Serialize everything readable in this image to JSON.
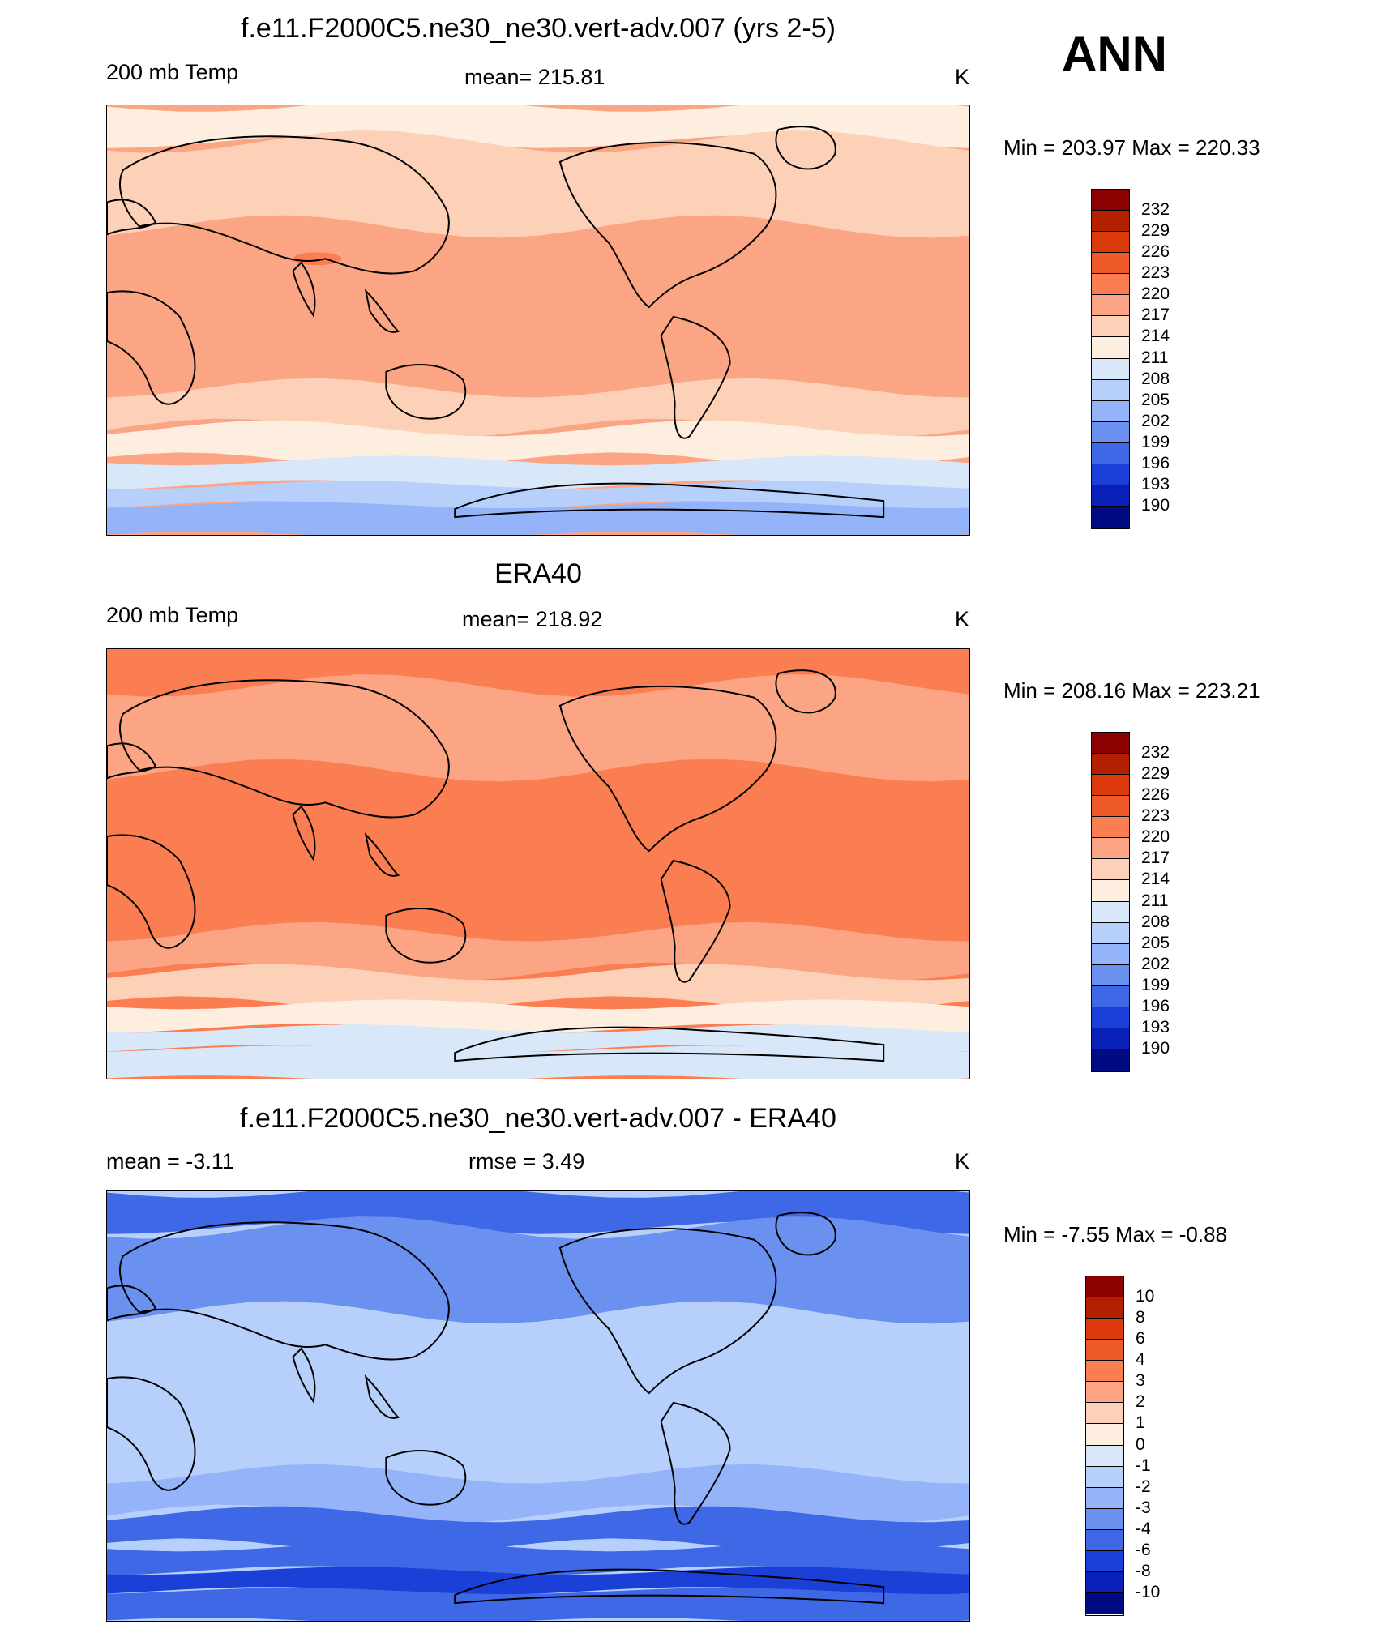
{
  "season": "ANN",
  "panels": [
    {
      "title": "f.e11.F2000C5.ne30_ne30.vert-adv.007 (yrs 2-5)",
      "left_label": "200 mb Temp",
      "center_label": "mean= 215.81",
      "units": "K",
      "minmax": "Min = 203.97 Max = 220.33",
      "colorbar_labels": [
        "232",
        "229",
        "226",
        "223",
        "220",
        "217",
        "214",
        "211",
        "208",
        "205",
        "202",
        "199",
        "196",
        "193",
        "190"
      ],
      "colorbar_colors": [
        "#8b0000",
        "#b22000",
        "#dd3a0c",
        "#f05a2a",
        "#fb7d52",
        "#fca585",
        "#fdd0b8",
        "#fdeedf",
        "#d8e8f8",
        "#b7d0fb",
        "#94b3f8",
        "#6a90f0",
        "#3e68e6",
        "#1a40d8",
        "#0820b8",
        "#000a82"
      ],
      "fields": {
        "zone_north": "#fdd0b8",
        "zone_arctic": "#fdeedf",
        "zone_tropic": "#fca585",
        "zone_south": "#fdd0b8",
        "zone_south2": "#fdeedf",
        "zone_ant1": "#d8e8f8",
        "zone_ant2": "#b7d0fb",
        "zone_ant3": "#94b3f8",
        "hot": "#fb7d52"
      }
    },
    {
      "title": "ERA40",
      "left_label": "200 mb Temp",
      "center_label": "mean= 218.92",
      "units": "K",
      "minmax": "Min = 208.16 Max = 223.21",
      "colorbar_labels": [
        "232",
        "229",
        "226",
        "223",
        "220",
        "217",
        "214",
        "211",
        "208",
        "205",
        "202",
        "199",
        "196",
        "193",
        "190"
      ],
      "colorbar_colors": [
        "#8b0000",
        "#b22000",
        "#dd3a0c",
        "#f05a2a",
        "#fb7d52",
        "#fca585",
        "#fdd0b8",
        "#fdeedf",
        "#d8e8f8",
        "#b7d0fb",
        "#94b3f8",
        "#6a90f0",
        "#3e68e6",
        "#1a40d8",
        "#0820b8",
        "#000a82"
      ],
      "fields": {
        "zone_north": "#fca585",
        "zone_arctic": "#fb7d52",
        "zone_tropic": "#fb7d52",
        "zone_south": "#fca585",
        "zone_south2": "#fdd0b8",
        "zone_ant1": "#fdeedf",
        "zone_ant2": "#d8e8f8",
        "zone_ant3": "#d8e8f8",
        "hot": "#fb7d52"
      }
    },
    {
      "title": "f.e11.F2000C5.ne30_ne30.vert-adv.007 - ERA40",
      "left_label": "mean =  -3.11",
      "center_label": "rmse =   3.49",
      "units": "K",
      "minmax": "Min =  -7.55 Max =  -0.88",
      "colorbar_labels": [
        "10",
        "8",
        "6",
        "4",
        "3",
        "2",
        "1",
        "0",
        "-1",
        "-2",
        "-3",
        "-4",
        "-6",
        "-8",
        "-10"
      ],
      "colorbar_colors": [
        "#8b0000",
        "#b22000",
        "#dd3a0c",
        "#f05a2a",
        "#fb7d52",
        "#fca585",
        "#fdd0b8",
        "#fdeedf",
        "#d8e8f8",
        "#b7d0fb",
        "#94b3f8",
        "#6a90f0",
        "#3e68e6",
        "#1a40d8",
        "#0820b8",
        "#000a82"
      ],
      "fields": {
        "zone_north": "#6a90f0",
        "zone_arctic": "#3e68e6",
        "zone_tropic": "#b7d0fb",
        "zone_south": "#94b3f8",
        "zone_south2": "#3e68e6",
        "zone_ant1": "#3e68e6",
        "zone_ant2": "#1a40d8",
        "zone_ant3": "#3e68e6",
        "hot": "#b7d0fb"
      }
    }
  ]
}
